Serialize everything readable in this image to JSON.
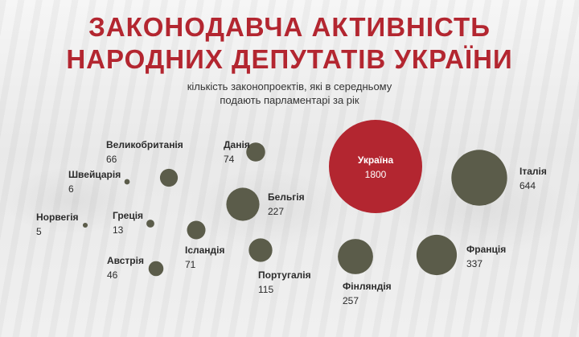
{
  "header": {
    "title_line1": "ЗАКОНОДАВЧА АКТИВНІСТЬ",
    "title_line2": "НАРОДНИХ ДЕПУТАТІВ УКРАЇНИ",
    "subtitle_line1": "кількість законопроектів, які в середньому",
    "subtitle_line2": "подають парламентарі за рік"
  },
  "colors": {
    "title": "#b32630",
    "highlight_bubble": "#b32630",
    "bubble": "#5b5c4a"
  },
  "chart_data": {
    "type": "bubble",
    "title": "ЗАКОНОДАВЧА АКТИВНІСТЬ НАРОДНИХ ДЕПУТАТІВ УКРАЇНИ",
    "subtitle": "кількість законопроектів, які в середньому подають парламентарі за рік",
    "series": [
      {
        "name": "Україна",
        "value": 1800,
        "highlight": true
      },
      {
        "name": "Італія",
        "value": 644
      },
      {
        "name": "Франція",
        "value": 337
      },
      {
        "name": "Фінляндія",
        "value": 257
      },
      {
        "name": "Бельгія",
        "value": 227
      },
      {
        "name": "Португалія",
        "value": 115
      },
      {
        "name": "Данія",
        "value": 74
      },
      {
        "name": "Ісландія",
        "value": 71
      },
      {
        "name": "Великобританія",
        "value": 66
      },
      {
        "name": "Австрія",
        "value": 46
      },
      {
        "name": "Греція",
        "value": 13
      },
      {
        "name": "Швейцарія",
        "value": 6
      },
      {
        "name": "Норвегія",
        "value": 5
      }
    ]
  }
}
